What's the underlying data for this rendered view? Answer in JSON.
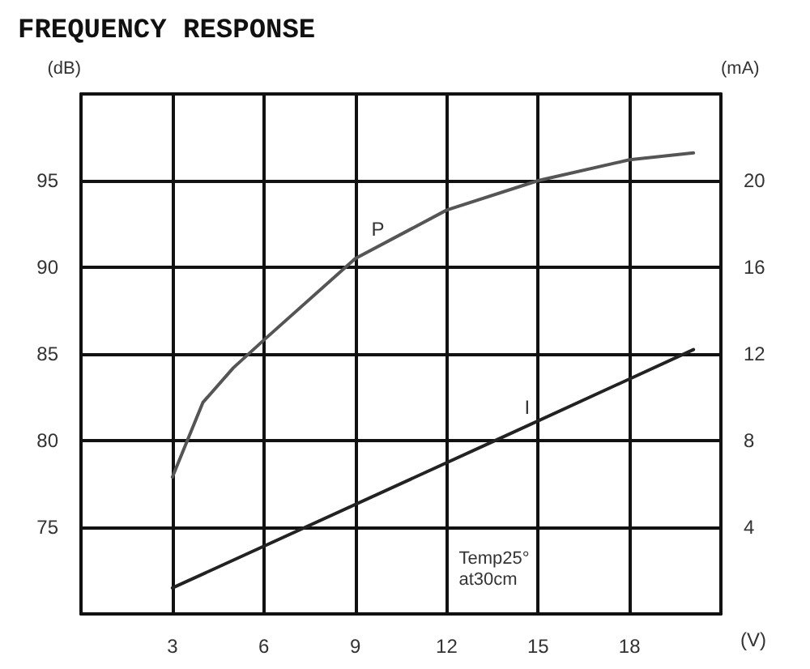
{
  "chart_data": {
    "type": "line",
    "title": "FREQUENCY RESPONSE",
    "xlabel": "(V)",
    "ylabel": "(dB)",
    "y2label": "(mA)",
    "annotations": [
      "Temp25°\nat30cm"
    ],
    "xlim": [
      0,
      21
    ],
    "xticks": [
      3,
      6,
      9,
      12,
      15,
      18
    ],
    "ylim": [
      70,
      100
    ],
    "yticks": [
      75,
      80,
      85,
      90,
      95
    ],
    "y2lim": [
      0,
      24
    ],
    "y2ticks": [
      4,
      8,
      12,
      16,
      20
    ],
    "series": [
      {
        "name": "P",
        "color": "#555555",
        "x": [
          3,
          4,
          5,
          6,
          9,
          12,
          15,
          18,
          20.1
        ],
        "values": [
          77.9,
          82.2,
          84.2,
          85.8,
          90.5,
          93.3,
          95,
          96.2,
          96.6
        ]
      },
      {
        "name": "I",
        "color": "#222222",
        "axis": "y2",
        "x": [
          3,
          13.9,
          20.1
        ],
        "values": [
          1.2,
          8.2,
          12.2
        ]
      }
    ],
    "grid": true,
    "legend": false,
    "marker": "none",
    "line_style": "solid"
  }
}
